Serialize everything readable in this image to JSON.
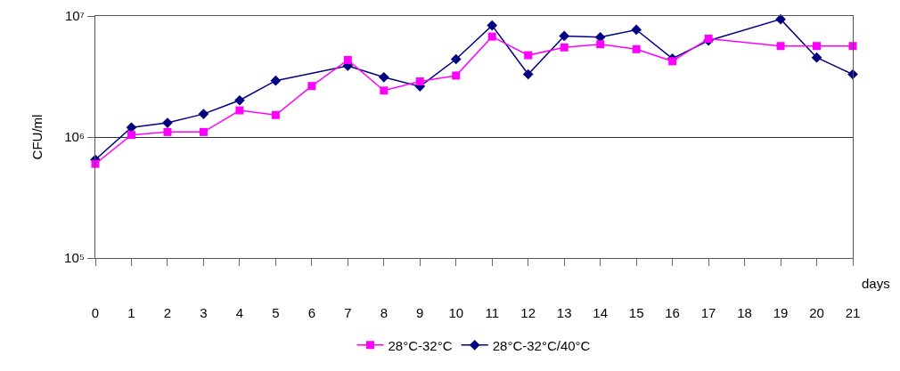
{
  "chart_data": {
    "type": "line",
    "xlabel": "days",
    "ylabel": "CFU/ml",
    "log": "y",
    "grid": "y",
    "legend": "bottom",
    "xlim": [
      0,
      21
    ],
    "xticks": [
      0,
      1,
      2,
      3,
      4,
      5,
      6,
      7,
      8,
      9,
      10,
      11,
      12,
      13,
      14,
      15,
      16,
      17,
      18,
      19,
      20,
      21
    ],
    "ylim": [
      100000,
      10000000
    ],
    "yticks": [
      {
        "value": 100000,
        "label": "10⁵"
      },
      {
        "value": 1000000,
        "label": "10⁶"
      },
      {
        "value": 10000000,
        "label": "10⁷"
      }
    ],
    "line_style": "solid",
    "series": [
      {
        "name": "28°C-32°C",
        "color": "#ff00ff",
        "marker": "square",
        "x": [
          0,
          1,
          2,
          3,
          4,
          5,
          6,
          7,
          8,
          9,
          10,
          11,
          12,
          13,
          14,
          15,
          16,
          17,
          19,
          20,
          21
        ],
        "values": [
          600000,
          1040000,
          1100000,
          1100000,
          1660000,
          1520000,
          2640000,
          4330000,
          2420000,
          2880000,
          3220000,
          6760000,
          4740000,
          5500000,
          5840000,
          5320000,
          4230000,
          6500000,
          5650000,
          5650000,
          5650000
        ]
      },
      {
        "name": "28°C-32°C/40°C",
        "color": "#000080",
        "marker": "diamond",
        "x": [
          0,
          1,
          2,
          3,
          4,
          5,
          7,
          8,
          9,
          10,
          11,
          12,
          13,
          14,
          15,
          16,
          17,
          19,
          20,
          21
        ],
        "values": [
          650000,
          1200000,
          1310000,
          1550000,
          2010000,
          2920000,
          3880000,
          3120000,
          2620000,
          4400000,
          8360000,
          3300000,
          6840000,
          6680000,
          7700000,
          4450000,
          6260000,
          9400000,
          4540000,
          3300000
        ]
      }
    ]
  }
}
